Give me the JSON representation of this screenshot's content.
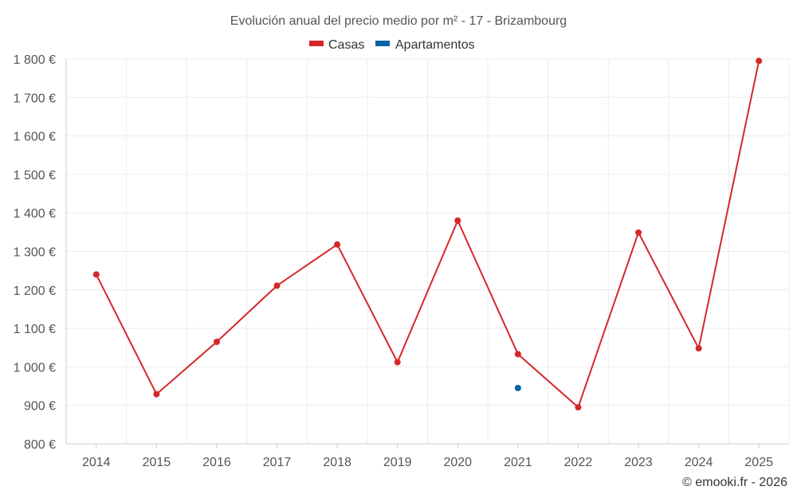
{
  "chart_data": {
    "type": "line",
    "title": "Evolución anual del precio medio por m² - 17 - Brizambourg",
    "categories": [
      "2014",
      "2015",
      "2016",
      "2017",
      "2018",
      "2019",
      "2020",
      "2021",
      "2022",
      "2023",
      "2024",
      "2025"
    ],
    "series": [
      {
        "name": "Casas",
        "color": "#d62728",
        "values": [
          1240,
          929,
          1065,
          1211,
          1318,
          1012,
          1380,
          1033,
          895,
          1349,
          1048,
          1795
        ]
      },
      {
        "name": "Apartamentos",
        "color": "#0b62a4",
        "values": [
          null,
          null,
          null,
          null,
          null,
          null,
          null,
          945,
          null,
          null,
          null,
          null
        ]
      }
    ],
    "ylim": [
      800,
      1800
    ],
    "y_ticks": [
      800,
      900,
      1000,
      1100,
      1200,
      1300,
      1400,
      1500,
      1600,
      1700,
      1800
    ],
    "y_tick_labels": [
      "800 €",
      "900 €",
      "1 000 €",
      "1 100 €",
      "1 200 €",
      "1 300 €",
      "1 400 €",
      "1 500 €",
      "1 600 €",
      "1 700 €",
      "1 800 €"
    ],
    "xlabel": "",
    "ylabel": "",
    "grid": true,
    "legend_position": "top-center"
  },
  "credit": "© emooki.fr - 2026"
}
